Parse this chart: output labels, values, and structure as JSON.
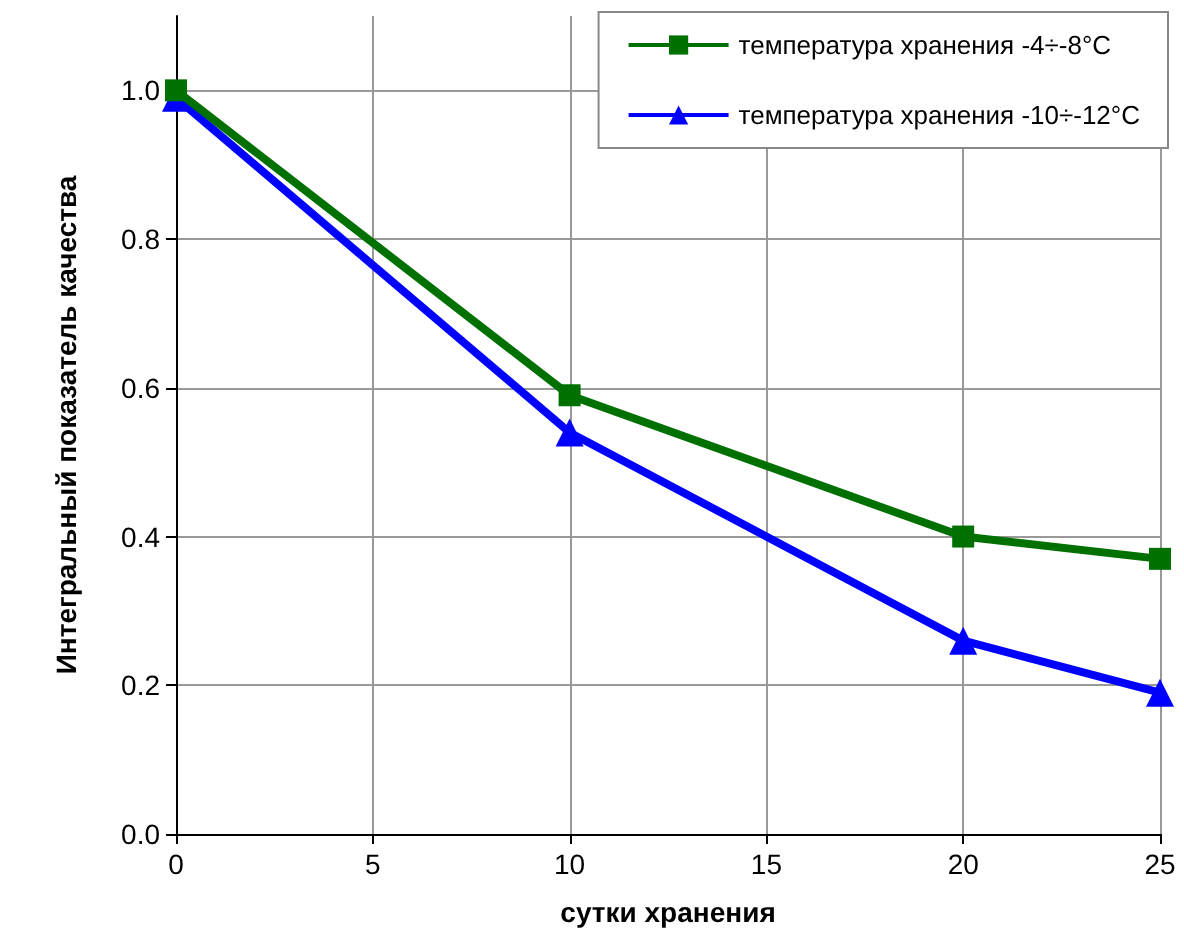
{
  "chart_data": {
    "type": "line",
    "xlabel": "сутки хранения",
    "ylabel": "Интегральный показатель качества",
    "x": [
      0,
      10,
      20,
      25
    ],
    "series": [
      {
        "name": "температура хранения -4÷-8°C",
        "color": "#007000",
        "marker": "square",
        "values": [
          1.0,
          0.59,
          0.4,
          0.37
        ]
      },
      {
        "name": "температура хранения -10÷-12°C",
        "color": "#0000ff",
        "marker": "triangle",
        "values": [
          0.99,
          0.54,
          0.26,
          0.19
        ]
      }
    ],
    "xlim": [
      0,
      25
    ],
    "xticks": [
      0,
      5,
      10,
      15,
      20,
      25
    ],
    "ylim": [
      0,
      1.1
    ],
    "yticks": [
      {
        "value": 0,
        "label": "0.0"
      },
      {
        "value": 0.2,
        "label": "0.2"
      },
      {
        "value": 0.4,
        "label": "0.4"
      },
      {
        "value": 0.6,
        "label": "0.6"
      },
      {
        "value": 0.8,
        "label": "0.8"
      },
      {
        "value": 1,
        "label": "1.0"
      }
    ],
    "grid": true,
    "legend": "top right",
    "line_style": "solid"
  }
}
